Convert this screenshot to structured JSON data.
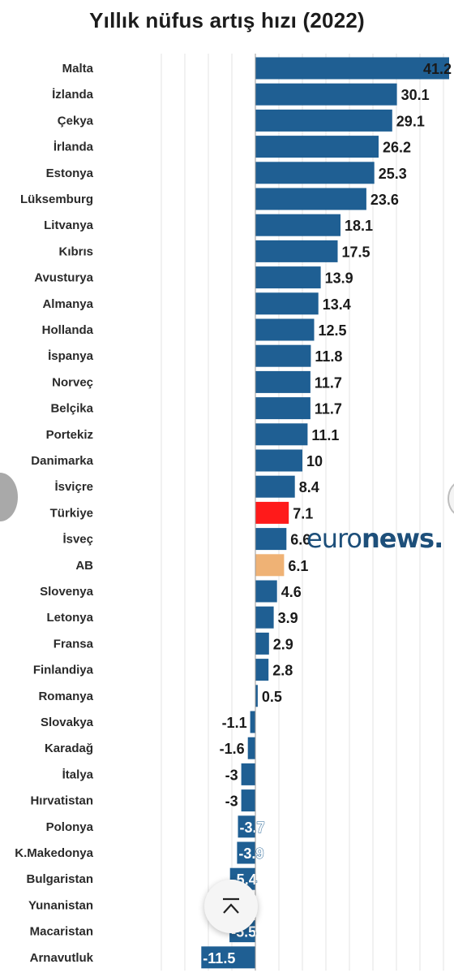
{
  "title": "Yıllık nüfus artış hızı (2022)",
  "watermark": {
    "light": "euro",
    "bold": "news."
  },
  "colors": {
    "default": "#1f5f93",
    "highlight": "#ff1a1a",
    "eu": "#efb275"
  },
  "chart_data": {
    "type": "bar",
    "orientation": "horizontal",
    "title": "Yıllık nüfus artış hızı (2022)",
    "grid": true,
    "categories": [
      "Malta",
      "İzlanda",
      "Çekya",
      "İrlanda",
      "Estonya",
      "Lüksemburg",
      "Litvanya",
      "Kıbrıs",
      "Avusturya",
      "Almanya",
      "Hollanda",
      "İspanya",
      "Norveç",
      "Belçika",
      "Portekiz",
      "Danimarka",
      "İsviçre",
      "Türkiye",
      "İsveç",
      "AB",
      "Slovenya",
      "Letonya",
      "Fransa",
      "Finlandiya",
      "Romanya",
      "Slovakya",
      "Karadağ",
      "İtalya",
      "Hırvatistan",
      "Polonya",
      "K.Makedonya",
      "Bulgaristan",
      "Yunanistan",
      "Macaristan",
      "Arnavutluk"
    ],
    "values": [
      41.2,
      30.1,
      29.1,
      26.2,
      25.3,
      23.6,
      18.1,
      17.5,
      13.9,
      13.4,
      12.5,
      11.8,
      11.7,
      11.7,
      11.1,
      10,
      8.4,
      7.1,
      6.6,
      6.1,
      4.6,
      3.9,
      2.9,
      2.8,
      0.5,
      -1.1,
      -1.6,
      -3,
      -3,
      -3.7,
      -3.9,
      -5.4,
      -5.8,
      -5.5,
      -11.5
    ],
    "value_labels": [
      "41.2",
      "30.1",
      "29.1",
      "26.2",
      "25.3",
      "23.6",
      "18.1",
      "17.5",
      "13.9",
      "13.4",
      "12.5",
      "11.8",
      "11.7",
      "11.7",
      "11.1",
      "10",
      "8.4",
      "7.1",
      "6.6",
      "6.1",
      "4.6",
      "3.9",
      "2.9",
      "2.8",
      "0.5",
      "-1.1",
      "-1.6",
      "-3",
      "-3",
      "-3.7",
      "-3.9",
      "-5.4",
      "",
      "-5.5",
      "-11.5"
    ],
    "highlight": {
      "Türkiye": "highlight",
      "AB": "eu"
    }
  }
}
